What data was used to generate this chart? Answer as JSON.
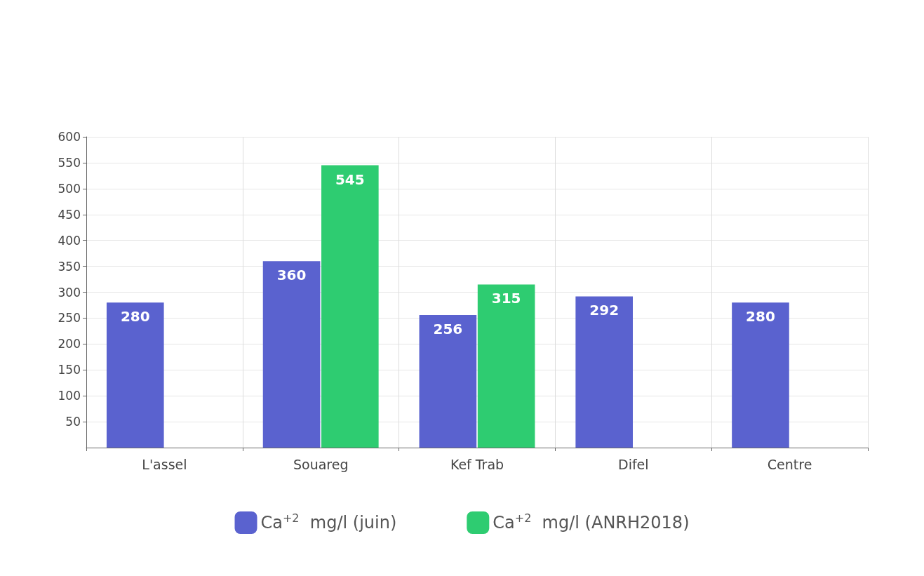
{
  "chart_data": {
    "type": "bar",
    "categories": [
      "L'assel",
      "Souareg",
      "Kef Trab",
      "Difel",
      "Centre"
    ],
    "series": [
      {
        "name": "Ca$^{+2}$  mg/l (juin)",
        "color": "#5a62cf",
        "values": [
          280,
          360,
          256,
          292,
          280
        ]
      },
      {
        "name": "Ca$^{+2}$  mg/l (ANRH2018)",
        "color": "#2ecc71",
        "values": [
          null,
          545,
          315,
          null,
          null
        ]
      }
    ],
    "ylim": [
      0,
      600
    ],
    "yticks": [
      50,
      100,
      150,
      200,
      250,
      300,
      350,
      400,
      450,
      500,
      550,
      600
    ],
    "grid": true,
    "legend": "bottom",
    "data_labels": true
  }
}
